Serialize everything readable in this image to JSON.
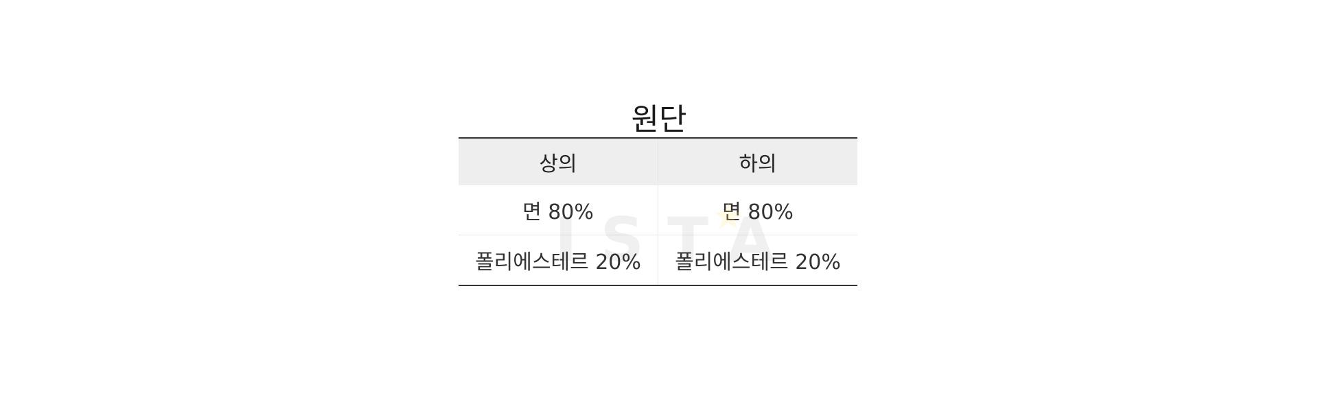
{
  "title": "원단",
  "table": {
    "headers": [
      "상의",
      "하의"
    ],
    "rows": [
      [
        "면 80%",
        "면 80%"
      ],
      [
        "폴리에스테르 20%",
        "폴리에스테르 20%"
      ]
    ]
  },
  "watermark": {
    "text": "ISTA",
    "icon": "star-icon"
  },
  "colors": {
    "header_bg": "#eeeeee",
    "rule": "#333333",
    "divider": "#e6e6e6"
  }
}
